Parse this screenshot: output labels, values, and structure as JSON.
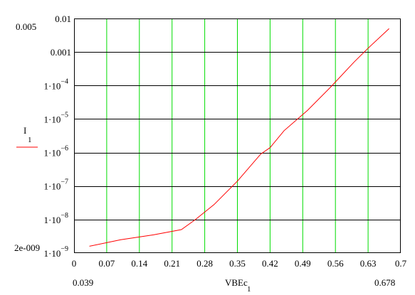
{
  "chart_data": {
    "type": "line",
    "x_scale": "linear",
    "y_scale": "log",
    "xlim": [
      0,
      0.7
    ],
    "ylim": [
      1e-09,
      0.01
    ],
    "grid": {
      "x": true,
      "y": true,
      "x_color": "#00dd00",
      "y_color": "#000000"
    },
    "x_ticks": [
      "0",
      "0.07",
      "0.14",
      "0.21",
      "0.28",
      "0.35",
      "0.42",
      "0.49",
      "0.56",
      "0.63",
      "0.7"
    ],
    "y_ticks": [
      {
        "value": 0.01,
        "label": "0.01"
      },
      {
        "value": 0.001,
        "label": "0.001"
      },
      {
        "value": 0.0001,
        "mantissa": "1",
        "exponent": "−4"
      },
      {
        "value": 1e-05,
        "mantissa": "1",
        "exponent": "−5"
      },
      {
        "value": 1e-06,
        "mantissa": "1",
        "exponent": "−6"
      },
      {
        "value": 1e-07,
        "mantissa": "1",
        "exponent": "−7"
      },
      {
        "value": 1e-08,
        "mantissa": "1",
        "exponent": "−8"
      },
      {
        "value": 1e-09,
        "mantissa": "1",
        "exponent": "−9"
      }
    ],
    "y_marker_top": "0.005",
    "y_marker_bottom": "2e-009",
    "x_marker_left": "0.039",
    "x_marker_right": "0.678",
    "ylabel": "I",
    "ylabel_sub": "1",
    "xlabel": "VBEc",
    "xlabel_sub": "1",
    "series": [
      {
        "color": "#ff0000",
        "x": [
          0.033,
          0.1,
          0.17,
          0.23,
          0.26,
          0.3,
          0.35,
          0.4,
          0.42,
          0.45,
          0.5,
          0.55,
          0.6,
          0.63,
          0.675
        ],
        "y": [
          1.6e-09,
          2.5e-09,
          3.5e-09,
          5e-09,
          1e-08,
          2.8e-08,
          1.4e-07,
          9e-07,
          1.4e-06,
          4.5e-06,
          1.8e-05,
          9e-05,
          0.0005,
          0.0013,
          0.005
        ]
      }
    ]
  }
}
